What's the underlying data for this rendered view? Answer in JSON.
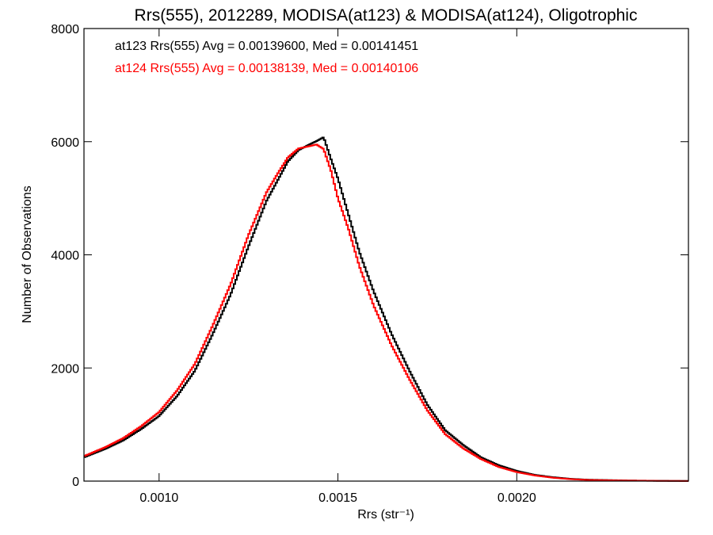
{
  "chart_data": {
    "type": "line",
    "title": "Rrs(555), 2012289, MODISA(at123) & MODISA(at124), Oligotrophic",
    "xlabel": "Rrs (str⁻¹)",
    "ylabel": "Number of Observations",
    "xlim": [
      0.00079,
      0.00248
    ],
    "ylim": [
      0,
      8000
    ],
    "xticks": [
      0.001,
      0.0015,
      0.002
    ],
    "xtick_labels": [
      "0.0010",
      "0.0015",
      "0.0020"
    ],
    "yticks": [
      0,
      2000,
      4000,
      6000,
      8000
    ],
    "ytick_labels": [
      "0",
      "2000",
      "4000",
      "6000",
      "8000"
    ],
    "grid": false,
    "legend_position": "top-left",
    "series": [
      {
        "name": "at123 Rrs(555) Avg = 0.00139600, Med = 0.00141451",
        "color": "#000000",
        "x": [
          0.00079,
          0.00085,
          0.0009,
          0.00095,
          0.001,
          0.00105,
          0.0011,
          0.00115,
          0.0012,
          0.00125,
          0.0013,
          0.00133,
          0.00136,
          0.00139,
          0.00142,
          0.00144,
          0.00146,
          0.00148,
          0.0015,
          0.00153,
          0.00156,
          0.0016,
          0.00165,
          0.0017,
          0.00175,
          0.0018,
          0.00185,
          0.0019,
          0.00195,
          0.002,
          0.00205,
          0.0021,
          0.00215,
          0.0022,
          0.0023,
          0.0024,
          0.00248
        ],
        "y": [
          420,
          570,
          720,
          920,
          1150,
          1500,
          1950,
          2600,
          3300,
          4150,
          4950,
          5300,
          5650,
          5850,
          5950,
          6010,
          6080,
          5700,
          5350,
          4700,
          4050,
          3350,
          2600,
          1950,
          1350,
          900,
          640,
          420,
          280,
          180,
          110,
          70,
          40,
          25,
          12,
          5,
          3
        ]
      },
      {
        "name": "at124 Rrs(555) Avg = 0.00138139, Med = 0.00140106",
        "color": "#ff0000",
        "x": [
          0.00079,
          0.00085,
          0.0009,
          0.00095,
          0.001,
          0.00105,
          0.0011,
          0.00115,
          0.0012,
          0.00125,
          0.0013,
          0.00133,
          0.00136,
          0.00139,
          0.00142,
          0.00144,
          0.00146,
          0.00148,
          0.0015,
          0.00153,
          0.00156,
          0.0016,
          0.00165,
          0.0017,
          0.00175,
          0.0018,
          0.00185,
          0.0019,
          0.00195,
          0.002,
          0.00205,
          0.0021,
          0.00215,
          0.0022,
          0.0023,
          0.0024,
          0.00248
        ],
        "y": [
          440,
          600,
          760,
          970,
          1220,
          1600,
          2070,
          2750,
          3480,
          4350,
          5100,
          5420,
          5720,
          5880,
          5920,
          5950,
          5870,
          5500,
          5000,
          4450,
          3800,
          3100,
          2400,
          1800,
          1250,
          830,
          580,
          390,
          250,
          160,
          100,
          60,
          35,
          20,
          10,
          4,
          2
        ]
      }
    ]
  }
}
